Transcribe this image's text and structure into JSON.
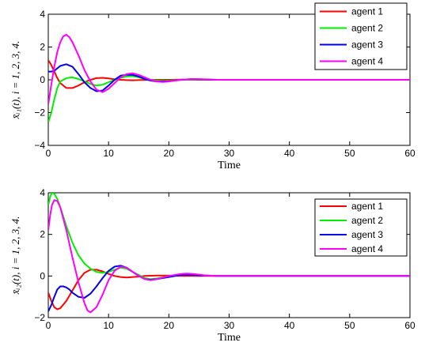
{
  "chart_data": [
    {
      "type": "line",
      "xlabel": "Time",
      "ylabel": "x̄ᵢ₁(t), i = 1, 2, 3, 4.",
      "xlim": [
        0,
        60
      ],
      "ylim": [
        -4,
        4
      ],
      "x_ticks": [
        "0",
        "10",
        "20",
        "30",
        "40",
        "50",
        "60"
      ],
      "y_ticks": [
        "−4",
        "−2",
        "0",
        "2",
        "4"
      ],
      "legend_position": "top-right",
      "grid": false,
      "series": [
        {
          "name": "agent 1",
          "color": "#ff0000",
          "x": [
            0,
            0.5,
            1,
            1.5,
            2,
            3,
            4,
            5,
            6,
            7,
            8,
            9,
            10,
            11,
            12,
            13,
            14,
            15,
            16,
            18,
            20,
            22,
            24,
            26,
            28,
            30,
            35,
            40,
            50,
            60
          ],
          "y": [
            1.2,
            0.9,
            0.5,
            0.1,
            -0.2,
            -0.5,
            -0.5,
            -0.35,
            -0.15,
            0.0,
            0.1,
            0.12,
            0.08,
            0.03,
            0.0,
            -0.02,
            -0.03,
            -0.02,
            -0.01,
            0.0,
            0.0,
            0.01,
            0.0,
            0.0,
            0.0,
            0.0,
            0.0,
            0.0,
            0.0,
            0.0
          ]
        },
        {
          "name": "agent 2",
          "color": "#00ee00",
          "x": [
            0,
            0.5,
            1,
            1.5,
            2,
            3,
            4,
            5,
            6,
            7,
            8,
            9,
            10,
            11,
            12,
            13,
            14,
            15,
            16,
            18,
            20,
            22,
            24,
            26,
            28,
            30,
            35,
            40,
            50,
            60
          ],
          "y": [
            -2.6,
            -2.0,
            -1.2,
            -0.5,
            -0.1,
            0.1,
            0.15,
            0.05,
            -0.1,
            -0.25,
            -0.35,
            -0.3,
            -0.15,
            0.0,
            0.12,
            0.2,
            0.22,
            0.15,
            0.05,
            -0.05,
            -0.05,
            0.0,
            0.02,
            0.01,
            0.0,
            0.0,
            0.0,
            0.0,
            0.0,
            0.0
          ]
        },
        {
          "name": "agent 3",
          "color": "#0000ee",
          "x": [
            0,
            0.5,
            1,
            1.5,
            2,
            3,
            4,
            5,
            6,
            7,
            8,
            9,
            10,
            11,
            12,
            13,
            14,
            15,
            16,
            17,
            18,
            20,
            22,
            24,
            26,
            28,
            30,
            35,
            40,
            50,
            60
          ],
          "y": [
            0.5,
            0.5,
            0.55,
            0.7,
            0.85,
            0.95,
            0.8,
            0.35,
            -0.15,
            -0.5,
            -0.7,
            -0.65,
            -0.35,
            0.0,
            0.25,
            0.3,
            0.3,
            0.2,
            0.05,
            -0.05,
            -0.1,
            -0.08,
            0.0,
            0.05,
            0.02,
            0.0,
            0.0,
            0.0,
            0.0,
            0.0,
            0.0
          ]
        },
        {
          "name": "agent 4",
          "color": "#ff00ff",
          "x": [
            0,
            0.5,
            1,
            1.5,
            2,
            2.5,
            3,
            3.5,
            4,
            5,
            6,
            7,
            8,
            9,
            10,
            11,
            12,
            13,
            14,
            15,
            16,
            17,
            18,
            19,
            20,
            22,
            24,
            26,
            28,
            30,
            35,
            40,
            50,
            60
          ],
          "y": [
            -1.5,
            -0.3,
            0.8,
            1.7,
            2.3,
            2.65,
            2.75,
            2.6,
            2.3,
            1.5,
            0.6,
            -0.1,
            -0.6,
            -0.75,
            -0.55,
            -0.2,
            0.15,
            0.35,
            0.4,
            0.3,
            0.15,
            0.0,
            -0.1,
            -0.13,
            -0.1,
            0.0,
            0.05,
            0.03,
            0.0,
            0.0,
            0.0,
            0.0,
            0.0,
            0.0
          ]
        }
      ]
    },
    {
      "type": "line",
      "xlabel": "Time",
      "ylabel": "x̄ᵢ₂(t), i = 1, 2, 3, 4.",
      "xlim": [
        0,
        60
      ],
      "ylim": [
        -2,
        4
      ],
      "x_ticks": [
        "0",
        "10",
        "20",
        "30",
        "40",
        "50",
        "60"
      ],
      "y_ticks": [
        "−2",
        "0",
        "2",
        "4"
      ],
      "legend_position": "top-right",
      "grid": false,
      "series": [
        {
          "name": "agent 1",
          "color": "#ff0000",
          "x": [
            0,
            0.5,
            1,
            1.5,
            2,
            3,
            4,
            5,
            6,
            7,
            8,
            9,
            10,
            11,
            12,
            13,
            14,
            15,
            16,
            18,
            20,
            22,
            24,
            26,
            28,
            30,
            35,
            40,
            50,
            60
          ],
          "y": [
            -0.8,
            -1.2,
            -1.5,
            -1.6,
            -1.55,
            -1.2,
            -0.7,
            -0.2,
            0.15,
            0.3,
            0.3,
            0.22,
            0.1,
            0.0,
            -0.05,
            -0.07,
            -0.05,
            -0.03,
            0.0,
            0.02,
            0.02,
            0.0,
            0.0,
            0.0,
            0.0,
            0.0,
            0.0,
            0.0,
            0.0,
            0.0
          ]
        },
        {
          "name": "agent 2",
          "color": "#00ee00",
          "x": [
            0,
            0.3,
            0.6,
            1,
            1.5,
            2,
            3,
            4,
            5,
            6,
            7,
            8,
            9,
            10,
            11,
            12,
            13,
            14,
            15,
            16,
            17,
            18,
            20,
            22,
            24,
            26,
            28,
            30,
            35,
            40,
            50,
            60
          ],
          "y": [
            3.4,
            3.8,
            4.0,
            3.95,
            3.7,
            3.3,
            2.4,
            1.6,
            1.0,
            0.6,
            0.35,
            0.2,
            0.15,
            0.2,
            0.3,
            0.4,
            0.35,
            0.2,
            0.05,
            -0.1,
            -0.15,
            -0.12,
            0.0,
            0.05,
            0.05,
            0.02,
            0.0,
            0.0,
            0.0,
            0.0,
            0.0,
            0.0
          ]
        },
        {
          "name": "agent 3",
          "color": "#0000ee",
          "x": [
            0,
            0.5,
            1,
            1.5,
            2,
            2.5,
            3,
            3.5,
            4,
            5,
            6,
            7,
            8,
            9,
            10,
            11,
            12,
            13,
            14,
            15,
            16,
            17,
            18,
            20,
            22,
            24,
            26,
            28,
            30,
            35,
            40,
            50,
            60
          ],
          "y": [
            -1.7,
            -1.4,
            -1.0,
            -0.65,
            -0.5,
            -0.5,
            -0.55,
            -0.65,
            -0.8,
            -1.0,
            -1.05,
            -0.85,
            -0.5,
            -0.1,
            0.25,
            0.45,
            0.5,
            0.4,
            0.2,
            0.0,
            -0.15,
            -0.18,
            -0.15,
            -0.05,
            0.05,
            0.05,
            0.02,
            0.0,
            0.0,
            0.0,
            0.0,
            0.0,
            0.0
          ]
        },
        {
          "name": "agent 4",
          "color": "#ff00ff",
          "x": [
            0,
            0.3,
            0.6,
            1,
            1.5,
            2,
            3,
            4,
            5,
            6,
            6.5,
            7,
            8,
            9,
            10,
            11,
            12,
            13,
            14,
            15,
            16,
            17,
            18,
            20,
            22,
            23,
            24,
            26,
            28,
            30,
            35,
            40,
            50,
            60
          ],
          "y": [
            2.2,
            2.9,
            3.4,
            3.65,
            3.6,
            3.3,
            2.2,
            0.9,
            -0.3,
            -1.3,
            -1.65,
            -1.75,
            -1.5,
            -0.9,
            -0.2,
            0.25,
            0.45,
            0.4,
            0.2,
            0.0,
            -0.15,
            -0.2,
            -0.15,
            0.0,
            0.1,
            0.12,
            0.1,
            0.03,
            0.0,
            0.0,
            0.0,
            0.0,
            0.0,
            0.0
          ]
        }
      ]
    }
  ]
}
